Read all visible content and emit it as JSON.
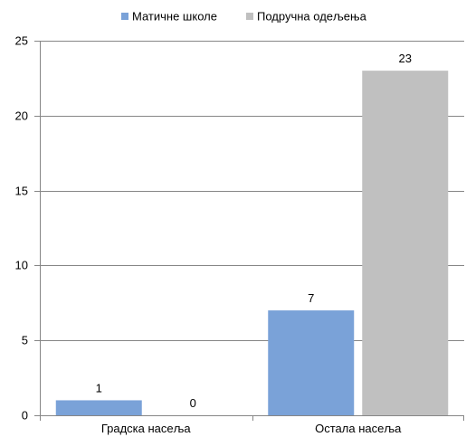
{
  "chart_data": {
    "type": "bar",
    "categories": [
      "Градска насеља",
      "Остала насеља"
    ],
    "series": [
      {
        "name": "Матичне школе",
        "values": [
          1,
          7
        ],
        "color": "#7aa2d8"
      },
      {
        "name": "Подручна одељења",
        "values": [
          0,
          23
        ],
        "color": "#c0c0c0"
      }
    ],
    "ylim": [
      0,
      25
    ],
    "yticks": [
      0,
      5,
      10,
      15,
      20,
      25
    ],
    "grid": true,
    "legend_position": "top-center",
    "data_labels": true
  }
}
